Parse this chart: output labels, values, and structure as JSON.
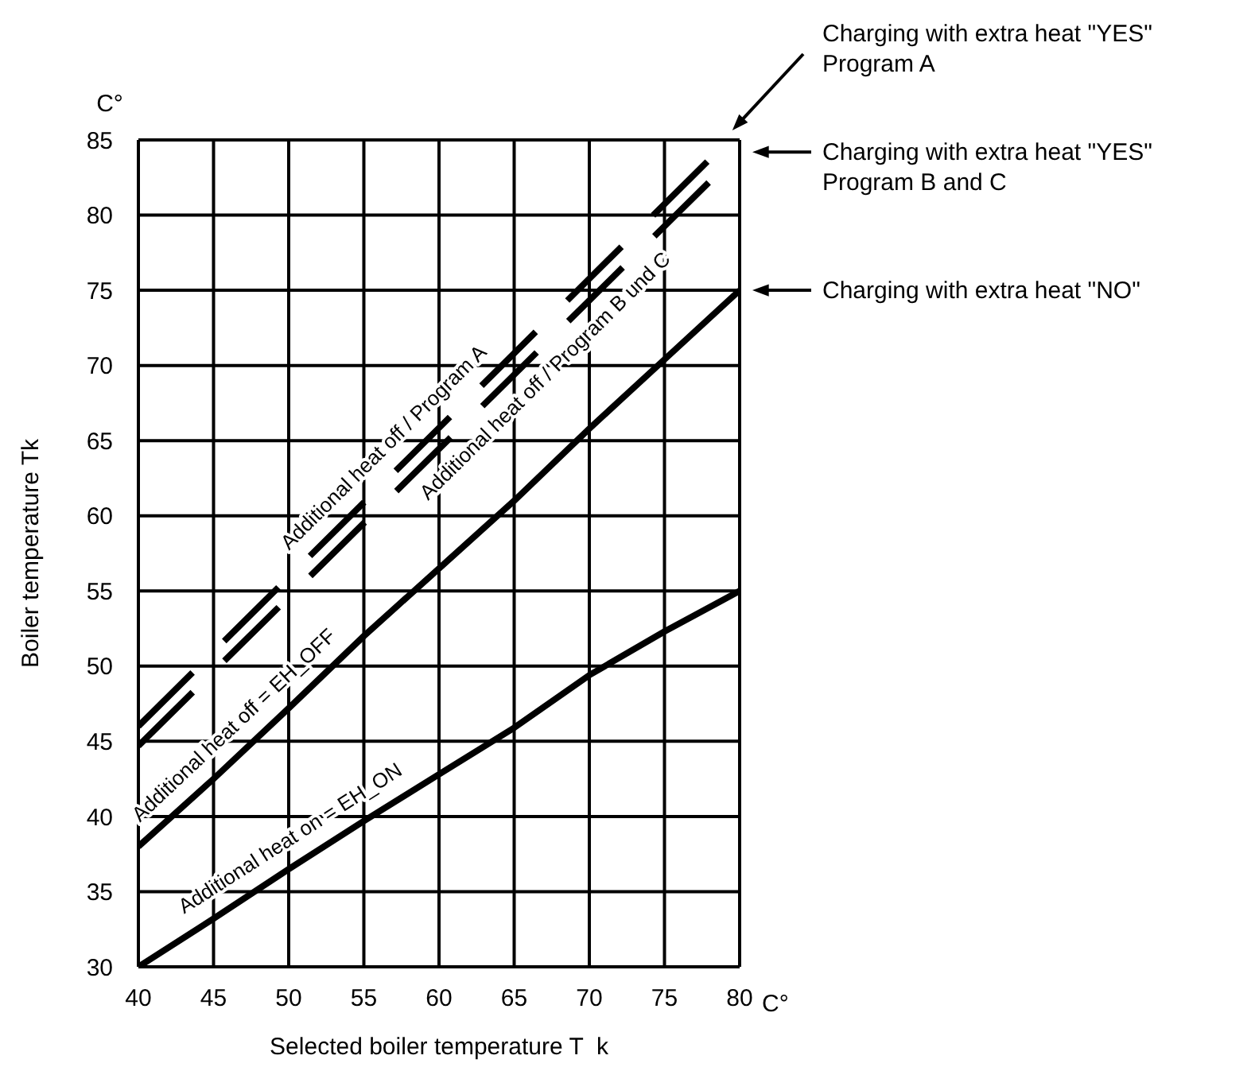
{
  "chart_data": {
    "type": "line",
    "xlabel": "Selected boiler temperature T  k",
    "ylabel": "Boiler temperature Tk",
    "xlim": [
      40,
      80
    ],
    "ylim": [
      30,
      85
    ],
    "xticks": [
      40,
      45,
      50,
      55,
      60,
      65,
      70,
      75,
      80
    ],
    "yticks": [
      30,
      35,
      40,
      45,
      50,
      55,
      60,
      65,
      70,
      75,
      80,
      85
    ],
    "grid": true,
    "marker": "none",
    "series": [
      {
        "color": "#000000",
        "line_style": "solid",
        "x": [
          40,
          45,
          50,
          55,
          60,
          65,
          70,
          75,
          80
        ],
        "values": [
          30,
          33.2,
          36.5,
          39.7,
          42.8,
          45.9,
          49.4,
          52.3,
          55
        ]
      },
      {
        "color": "#000000",
        "line_style": "solid",
        "x": [
          40,
          45,
          50,
          55,
          60,
          65,
          70,
          75,
          80
        ],
        "values": [
          38,
          42.5,
          47.2,
          52,
          56.5,
          61,
          65.8,
          70.4,
          75
        ]
      },
      {
        "color": "#000000",
        "line_style": "dashed",
        "x": [
          40,
          79.3
        ],
        "values": [
          46,
          85
        ]
      },
      {
        "color": "#000000",
        "line_style": "dashed",
        "x": [
          40,
          80
        ],
        "values": [
          44.7,
          84.2
        ]
      }
    ],
    "annotations": [
      "Additional heat on = EH_ON",
      "Additional heat off = EH_OFF",
      "Additional heat off / Program A",
      "Additional heat off / Program B und C",
      "Charging with extra heat \"YES\"\nProgram A",
      "Charging with extra heat \"YES\"\nProgram B and C",
      "Charging with extra heat \"NO\"",
      "C°",
      "C°"
    ]
  }
}
